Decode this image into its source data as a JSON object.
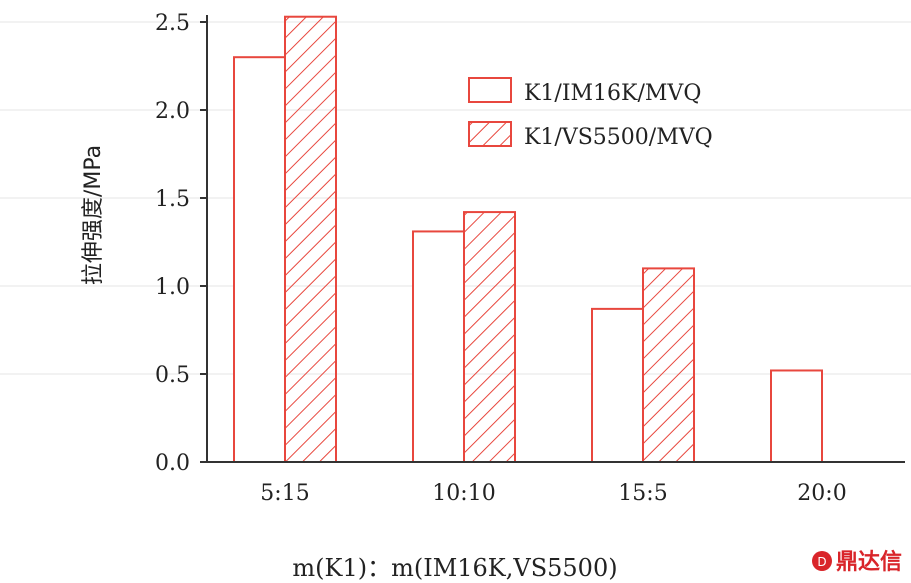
{
  "colors": {
    "bar_stroke": "#e8473e",
    "axis": "#333333",
    "grid": "#e6e6e6",
    "watermark": "#d9252a"
  },
  "chart_data": {
    "type": "bar",
    "ylabel": "拉伸强度/MPa",
    "xlabel": "m(K1)：m(IM16K,VS5500)",
    "categories": [
      "5:15",
      "10:10",
      "15:5",
      "20:0"
    ],
    "ylim": [
      0,
      2.5
    ],
    "yticks": [
      "0.0",
      "0.5",
      "1.0",
      "1.5",
      "2.0",
      "2.5"
    ],
    "ytick_values": [
      0,
      0.5,
      1.0,
      1.5,
      2.0,
      2.5
    ],
    "legend_position": "top-right",
    "series": [
      {
        "name": "K1/IM16K/MVQ",
        "pattern": "open",
        "values": [
          2.3,
          1.31,
          0.87,
          0.52
        ]
      },
      {
        "name": "K1/VS5500/MVQ",
        "pattern": "hatched",
        "values": [
          2.53,
          1.42,
          1.1,
          null
        ]
      }
    ]
  },
  "watermark": {
    "icon": "dingdaxin-logo-icon",
    "text": "鼎达信"
  }
}
